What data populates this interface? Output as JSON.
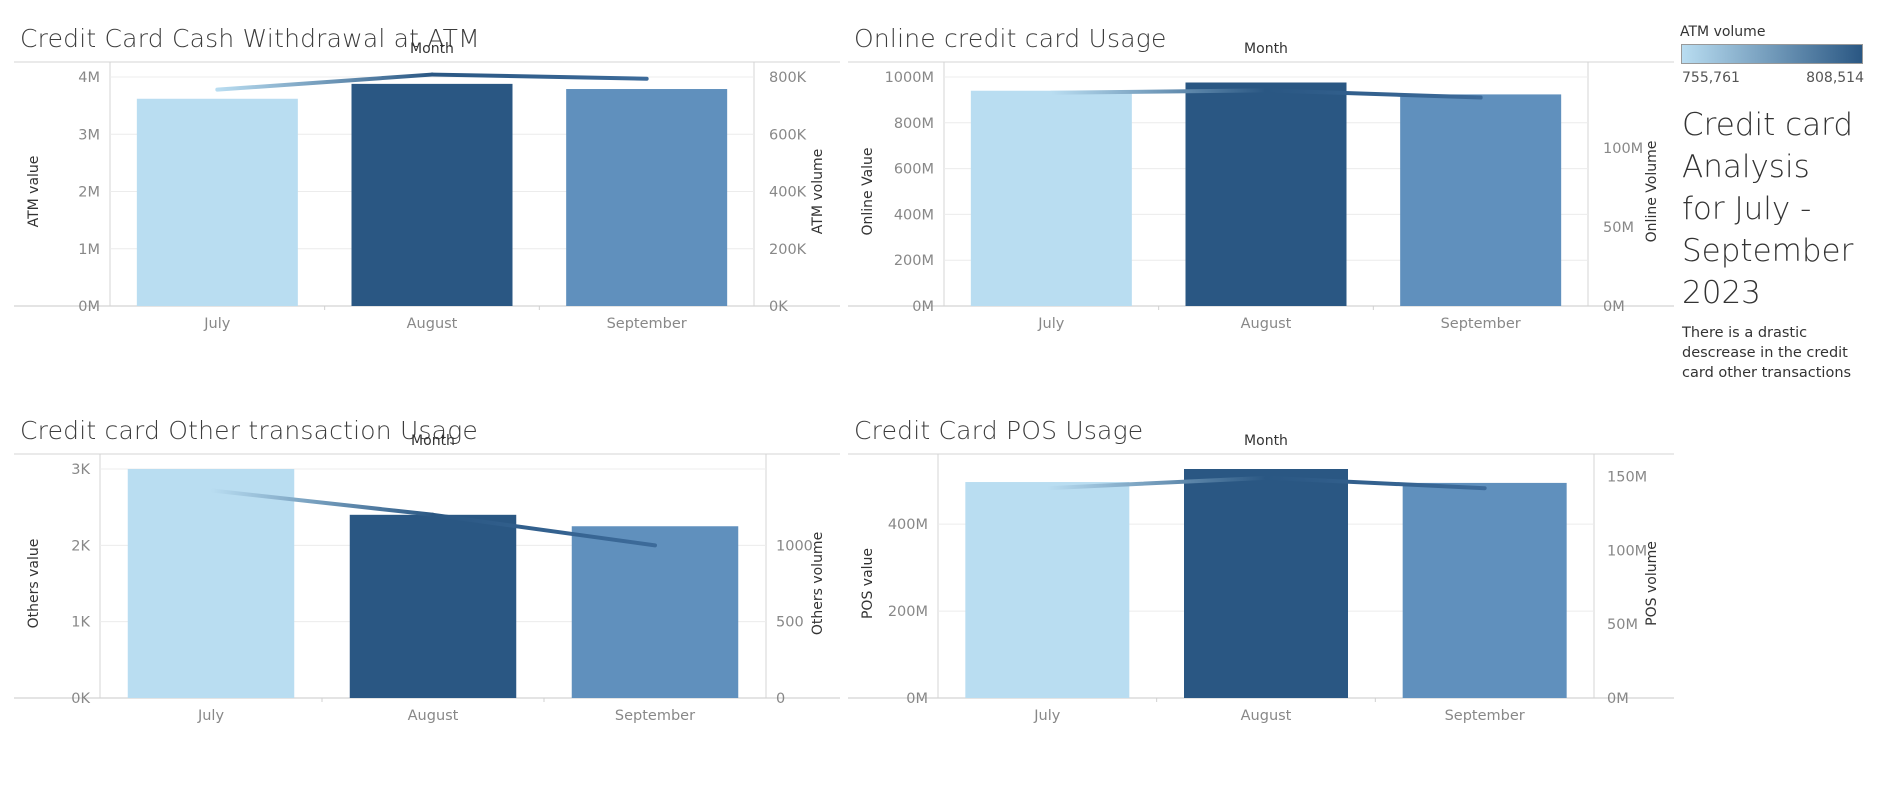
{
  "colors": {
    "july": "#b9ddf1",
    "august": "#2a5783",
    "september": "#6090bd",
    "axis_text": "#888888",
    "gridline": "#ececec"
  },
  "sidebar": {
    "legend_title": "ATM volume",
    "legend_min": "755,761",
    "legend_max": "808,514",
    "title": "Credit card Analysis for July - September 2023",
    "note": "There is a drastic descrease in the credit card other transactions"
  },
  "chart_data": [
    {
      "type": "bar",
      "title": "Credit Card Cash Withdrawal at ATM",
      "top_label": "Month",
      "categories": [
        "July",
        "August",
        "September"
      ],
      "series": [
        {
          "name": "ATM value",
          "values": [
            3620000,
            3880000,
            3790000
          ]
        },
        {
          "name": "ATM volume",
          "values": [
            755761,
            808514,
            794000
          ]
        }
      ],
      "ylabel": "ATM value",
      "ylabel_right": "ATM volume",
      "ylim": [
        0,
        4000000
      ],
      "ylim_right": [
        0,
        800000
      ],
      "yticks": [
        0,
        1000000,
        2000000,
        3000000,
        4000000
      ],
      "ytick_labels": [
        "0M",
        "1M",
        "2M",
        "3M",
        "4M"
      ],
      "yticks_right": [
        0,
        200000,
        400000,
        600000,
        800000
      ],
      "ytick_labels_right": [
        "0K",
        "200K",
        "400K",
        "600K",
        "800K"
      ]
    },
    {
      "type": "bar",
      "title": "Online credit card Usage",
      "top_label": "Month",
      "categories": [
        "July",
        "August",
        "September"
      ],
      "series": [
        {
          "name": "Online Value",
          "values": [
            940000000,
            976000000,
            924000000
          ]
        },
        {
          "name": "Online Volume",
          "values": [
            135000000,
            136500000,
            132000000
          ]
        }
      ],
      "ylabel": "Online Value",
      "ylabel_right": "Online Volume",
      "ylim": [
        0,
        1000000000
      ],
      "ylim_right": [
        0,
        145000000
      ],
      "yticks": [
        0,
        200000000,
        400000000,
        600000000,
        800000000,
        1000000000
      ],
      "ytick_labels": [
        "0M",
        "200M",
        "400M",
        "600M",
        "800M",
        "1000M"
      ],
      "yticks_right": [
        0,
        50000000,
        100000000
      ],
      "ytick_labels_right": [
        "0M",
        "50M",
        "100M"
      ]
    },
    {
      "type": "bar",
      "title": "Credit card Other transaction Usage",
      "top_label": "Month",
      "categories": [
        "July",
        "August",
        "September"
      ],
      "series": [
        {
          "name": "Others value",
          "values": [
            3000,
            2400,
            2250
          ]
        },
        {
          "name": "Others volume",
          "values": [
            1360,
            1200,
            1000
          ]
        }
      ],
      "ylabel": "Others value",
      "ylabel_right": "Others volume",
      "ylim": [
        0,
        3000
      ],
      "ylim_right": [
        0,
        1500
      ],
      "yticks": [
        0,
        1000,
        2000,
        3000
      ],
      "ytick_labels": [
        "0K",
        "1K",
        "2K",
        "3K"
      ],
      "yticks_right": [
        0,
        500,
        1000
      ],
      "ytick_labels_right": [
        "0",
        "500",
        "1000"
      ]
    },
    {
      "type": "bar",
      "title": "Credit Card POS Usage",
      "top_label": "Month",
      "categories": [
        "July",
        "August",
        "September"
      ],
      "series": [
        {
          "name": "POS value",
          "values": [
            497000000,
            527000000,
            495000000
          ]
        },
        {
          "name": "POS volume",
          "values": [
            142000000,
            149000000,
            142000000
          ]
        }
      ],
      "ylabel": "POS value",
      "ylabel_right": "POS volume",
      "ylim": [
        0,
        527000000
      ],
      "ylim_right": [
        0,
        155000000
      ],
      "yticks": [
        0,
        200000000,
        400000000
      ],
      "ytick_labels": [
        "0M",
        "200M",
        "400M"
      ],
      "yticks_right": [
        0,
        50000000,
        100000000,
        150000000
      ],
      "ytick_labels_right": [
        "0M",
        "50M",
        "100M",
        "150M"
      ]
    }
  ]
}
